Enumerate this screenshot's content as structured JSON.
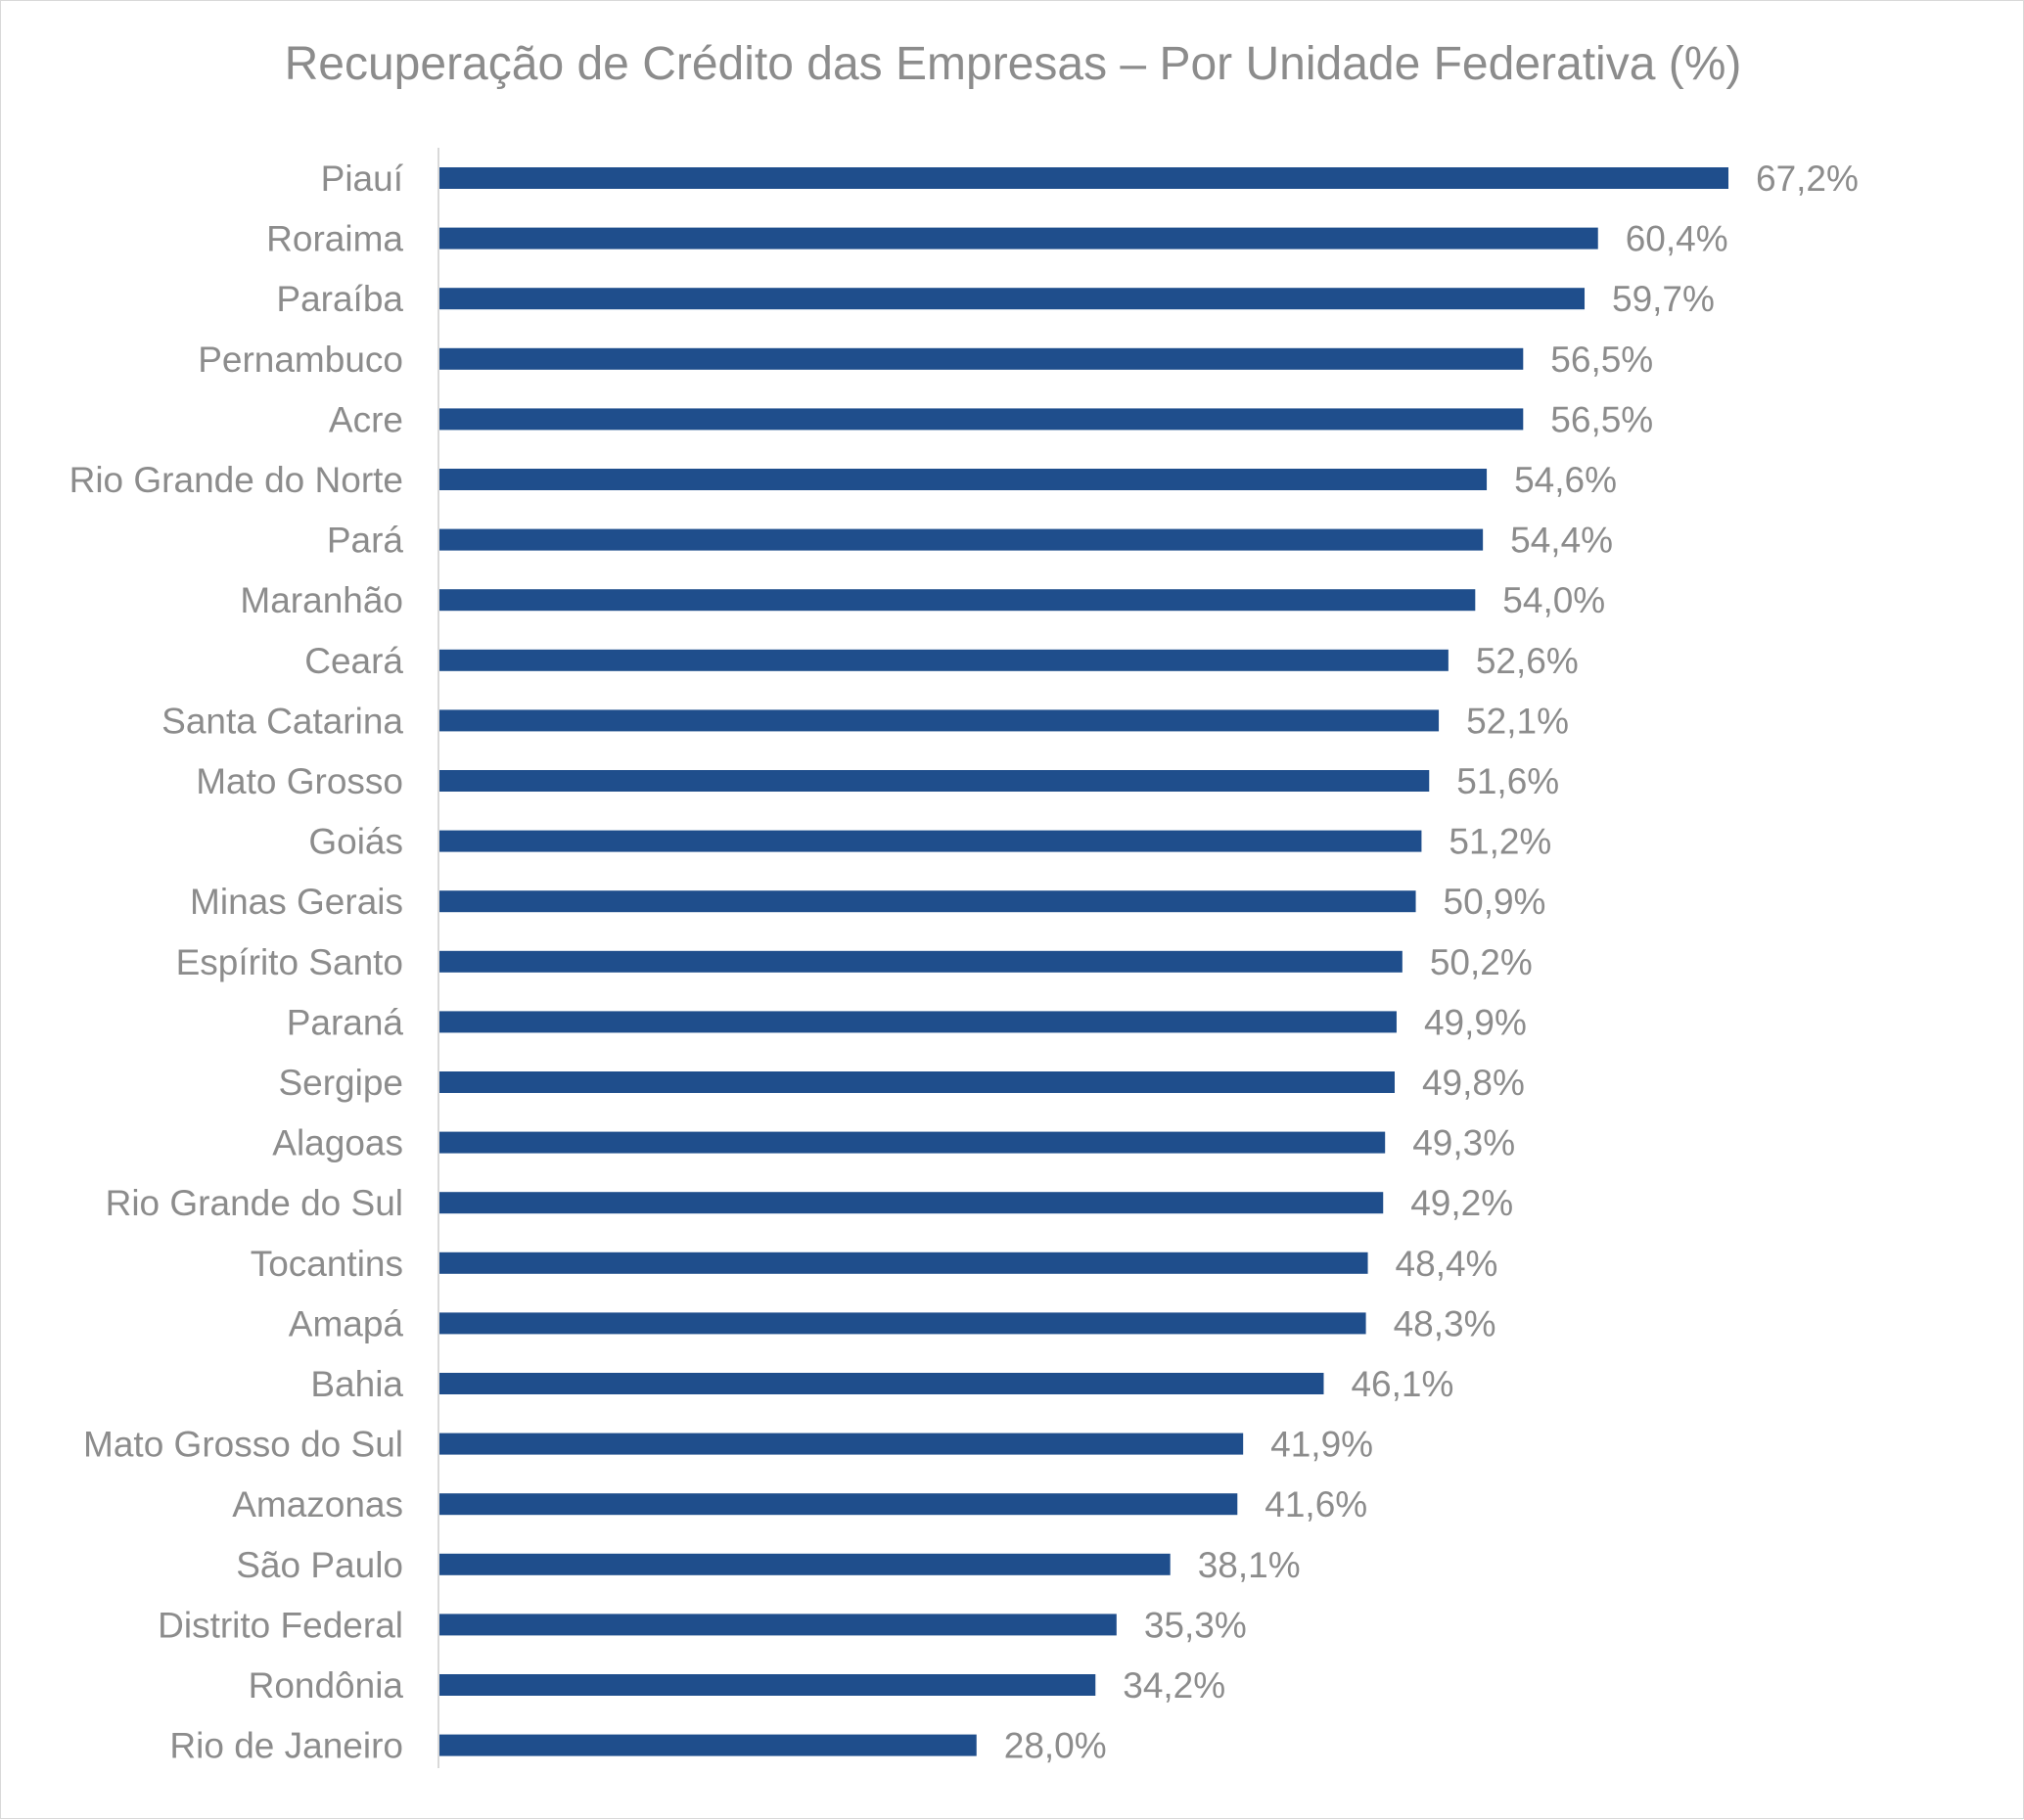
{
  "chart_data": {
    "type": "bar",
    "orientation": "horizontal",
    "title": "Recuperação de Crédito das Empresas – Por Unidade Federativa (%)",
    "xlabel": "",
    "ylabel": "",
    "xlim": [
      0,
      67.2
    ],
    "grid": false,
    "legend": "none",
    "bar_color": "#1f4e8c",
    "categories": [
      "Piauí",
      "Roraima",
      "Paraíba",
      "Pernambuco",
      "Acre",
      "Rio Grande do Norte",
      "Pará",
      "Maranhão",
      "Ceará",
      "Santa Catarina",
      "Mato Grosso",
      "Goiás",
      "Minas Gerais",
      "Espírito Santo",
      "Paraná",
      "Sergipe",
      "Alagoas",
      "Rio Grande do Sul",
      "Tocantins",
      "Amapá",
      "Bahia",
      "Mato Grosso do Sul",
      "Amazonas",
      "São Paulo",
      "Distrito Federal",
      "Rondônia",
      "Rio de Janeiro"
    ],
    "values": [
      67.2,
      60.4,
      59.7,
      56.5,
      56.5,
      54.6,
      54.4,
      54.0,
      52.6,
      52.1,
      51.6,
      51.2,
      50.9,
      50.2,
      49.9,
      49.8,
      49.3,
      49.2,
      48.4,
      48.3,
      46.1,
      41.9,
      41.6,
      38.1,
      35.3,
      34.2,
      28.0
    ],
    "data_labels": [
      "67,2%",
      "60,4%",
      "59,7%",
      "56,5%",
      "56,5%",
      "54,6%",
      "54,4%",
      "54,0%",
      "52,6%",
      "52,1%",
      "51,6%",
      "51,2%",
      "50,9%",
      "50,2%",
      "49,9%",
      "49,8%",
      "49,3%",
      "49,2%",
      "48,4%",
      "48,3%",
      "46,1%",
      "41,9%",
      "41,6%",
      "38,1%",
      "35,3%",
      "34,2%",
      "28,0%"
    ]
  }
}
